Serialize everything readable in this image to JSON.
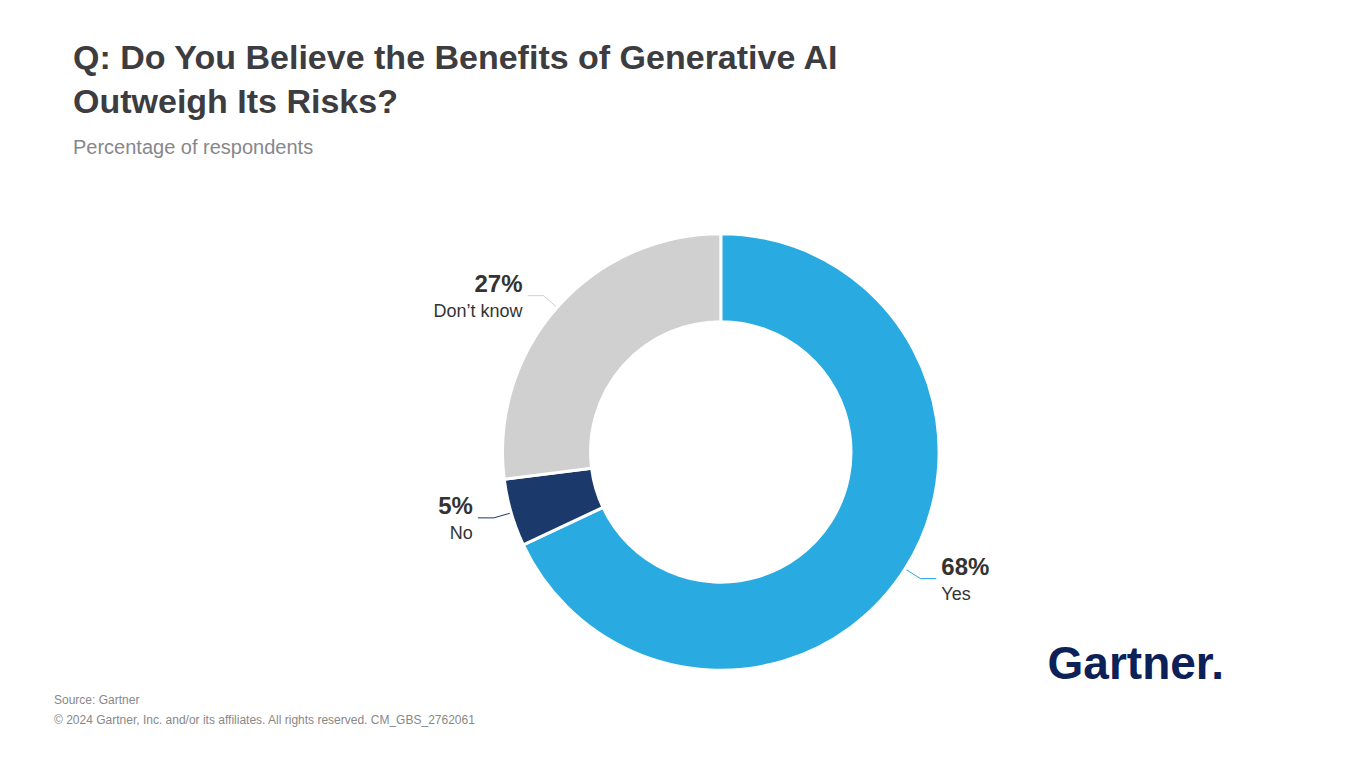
{
  "chart_data": {
    "type": "pie",
    "title": "Q: Do You Believe the Benefits of Generative AI\nOutweigh Its Risks?",
    "subtitle": "Percentage of respondents",
    "categories": [
      "Yes",
      "No",
      "Don’t know"
    ],
    "values": [
      68,
      5,
      27
    ],
    "value_labels": [
      "68%",
      "5%",
      "27%"
    ],
    "data_labels": true,
    "colors": [
      "#29ABE2",
      "#1B3A6B",
      "#D0D0D0"
    ],
    "annotations": [
      "Source: Gartner",
      "© 2024 Gartner, Inc. and/or its affiliates. All rights reserved. CM_GBS_2762061",
      "Gartner."
    ]
  }
}
